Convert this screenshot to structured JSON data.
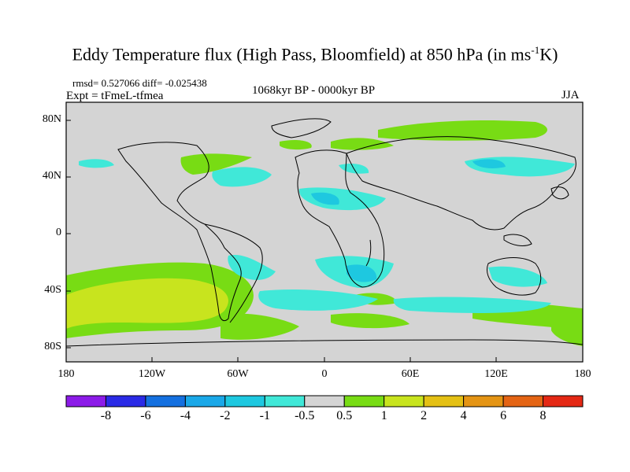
{
  "title": {
    "main": "Eddy Temperature flux (High Pass, Bloomfield) at 850 hPa (in ms",
    "sup": "-1",
    "tail": "K)"
  },
  "stats": "rmsd= 0.527066 diff= -0.025438",
  "experiment": "Expt = tFmeL-tfmea",
  "period": "1068kyr BP - 0000kyr BP",
  "season": "JJA",
  "lat_labels": [
    "80N",
    "40N",
    "0",
    "40S",
    "80S"
  ],
  "lon_labels": [
    "180",
    "120W",
    "60W",
    "0",
    "60E",
    "120E",
    "180"
  ],
  "colorbar": {
    "labels": [
      "-8",
      "-6",
      "-4",
      "-2",
      "-1",
      "-0.5",
      "0.5",
      "1",
      "2",
      "4",
      "6",
      "8"
    ],
    "colors": [
      "#8c1be8",
      "#2a2ae6",
      "#1470e0",
      "#1aa8e8",
      "#1ec8e0",
      "#40e8d8",
      "#d4d4d4",
      "#78dc14",
      "#c8e41e",
      "#e4c014",
      "#e49414",
      "#e46414",
      "#e42814"
    ]
  },
  "colors": {
    "background": "#d4d4d4",
    "cyan": "#40e8d8",
    "blue": "#1ec8e0",
    "green": "#78dc14",
    "yellowgreen": "#c8e41e"
  }
}
